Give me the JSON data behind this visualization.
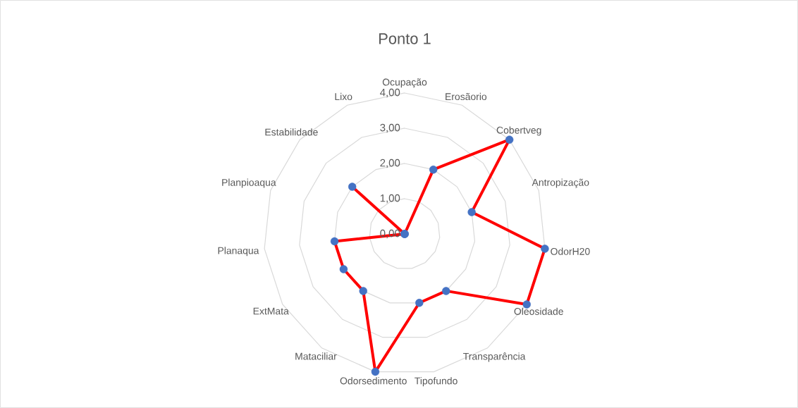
{
  "chart_data": {
    "type": "radar",
    "title": "Ponto 1",
    "categories": [
      "Ocupação",
      "Erosãorio",
      "Cobertveg",
      "Antropização",
      "OdorH20",
      "Oleosidade",
      "Transparência",
      "Tipofundo",
      "Odorsedimento",
      "Mataciliar",
      "ExtMata",
      "Planaqua",
      "Planpioaqua",
      "Estabilidade",
      "Lixo"
    ],
    "series": [
      {
        "color": "#ff0000",
        "values": [
          0,
          2,
          4,
          2,
          4,
          4,
          2,
          2,
          4,
          2,
          2,
          2,
          0,
          2,
          0
        ]
      }
    ],
    "ylim": [
      0,
      4
    ],
    "yticks": [
      {
        "value": 0,
        "label": "0,00"
      },
      {
        "value": 1,
        "label": "1,00"
      },
      {
        "value": 2,
        "label": "2,00"
      },
      {
        "value": 3,
        "label": "3,00"
      },
      {
        "value": 4,
        "label": "4,00"
      }
    ],
    "grid": true,
    "marker": "circle"
  }
}
